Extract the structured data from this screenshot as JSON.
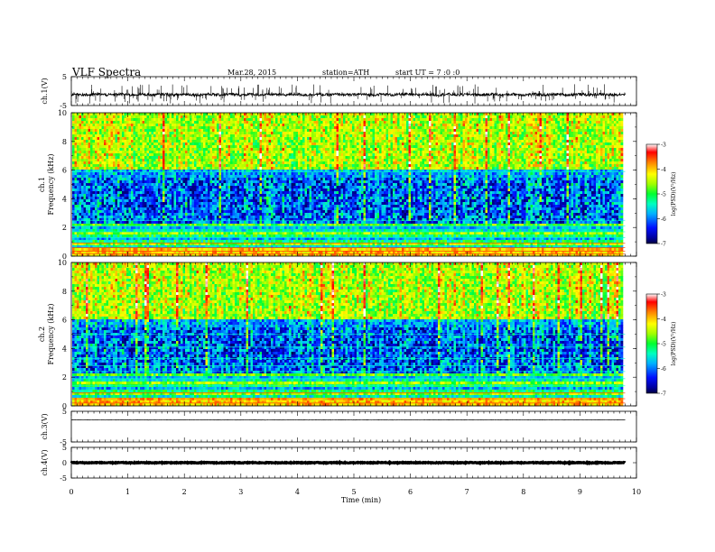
{
  "header": {
    "title": "VLF  Spectra",
    "date": "Mar.28, 2015",
    "station": "station=ATH",
    "start": "start  UT  =   7  :0  :0"
  },
  "chart_data": [
    {
      "type": "line",
      "name": "waveform-ch1",
      "ylabel": "ch.1(V)",
      "yticks": [
        "5",
        "-5"
      ],
      "ylim": [
        -5,
        5
      ],
      "xlim": [
        0,
        10
      ],
      "x_end": 9.8,
      "baseline": -1.2,
      "noise": 0.45,
      "spike_count": 170,
      "spike_amp": 3.6
    },
    {
      "type": "heatmap",
      "name": "spectrogram-ch1",
      "ylabel": "ch.1\nFrequency  (kHz)",
      "yticks": [
        "10",
        "8",
        "6",
        "4",
        "2",
        "0"
      ],
      "ylim": [
        0,
        10
      ],
      "xlim": [
        0,
        10
      ],
      "x_end": 9.8,
      "colorbar": {
        "label": "log(PSD)(V²/Hz)",
        "ticks": [
          "-3",
          "-4",
          "-5",
          "-6",
          "-7"
        ],
        "range": [
          -7,
          -3
        ]
      }
    },
    {
      "type": "heatmap",
      "name": "spectrogram-ch2",
      "ylabel": "ch.2\nFrequency  (kHz)",
      "yticks": [
        "10",
        "8",
        "6",
        "4",
        "2",
        "0"
      ],
      "ylim": [
        0,
        10
      ],
      "xlim": [
        0,
        10
      ],
      "x_end": 9.8,
      "colorbar": {
        "label": "log(PSD)(V²/Hz)",
        "ticks": [
          "-3",
          "-4",
          "-5",
          "-6",
          "-7"
        ],
        "range": [
          -7,
          -3
        ]
      }
    },
    {
      "type": "line",
      "name": "waveform-ch3",
      "ylabel": "ch.3(V)",
      "yticks": [
        "5",
        "-5"
      ],
      "ylim": [
        -5,
        5
      ],
      "xlim": [
        0,
        10
      ],
      "x_end": 9.8,
      "baseline": 2.2,
      "noise": 0.06
    },
    {
      "type": "line",
      "name": "waveform-ch4",
      "ylabel": "ch.4(V)",
      "yticks": [
        "5",
        "0",
        "-5"
      ],
      "ylim": [
        -5,
        5
      ],
      "xlim": [
        0,
        10
      ],
      "x_end": 9.8,
      "baseline": 0,
      "noise": 0.12
    }
  ],
  "xaxis": {
    "label": "Time  (min)",
    "ticks": [
      "0",
      "1",
      "2",
      "3",
      "4",
      "5",
      "6",
      "7",
      "8",
      "9",
      "10"
    ]
  }
}
